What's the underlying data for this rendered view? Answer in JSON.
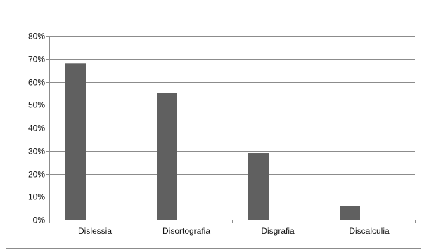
{
  "chart_data": {
    "type": "bar",
    "categories": [
      "Dislessia",
      "Disortografia",
      "Disgrafia",
      "Discalculia"
    ],
    "values": [
      68,
      55,
      29,
      6
    ],
    "y_unit": "%",
    "y_ticks": [
      "0%",
      "10%",
      "20%",
      "30%",
      "40%",
      "50%",
      "60%",
      "70%",
      "80%"
    ],
    "ylim": [
      0,
      80
    ],
    "grid": true,
    "legend": "none",
    "bar_color": "#606060",
    "title": "",
    "xlabel": "",
    "ylabel": ""
  }
}
